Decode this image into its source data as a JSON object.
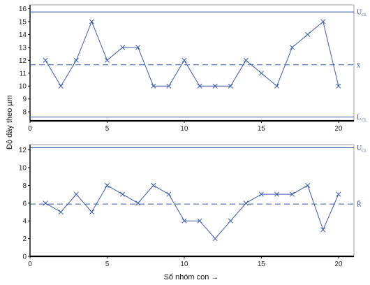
{
  "chart_data": [
    {
      "type": "line",
      "x": [
        1,
        2,
        3,
        4,
        5,
        6,
        7,
        8,
        9,
        10,
        11,
        12,
        13,
        14,
        15,
        16,
        17,
        18,
        19,
        20
      ],
      "series": [
        {
          "values": [
            12,
            10,
            12,
            15,
            12,
            13,
            13,
            10,
            10,
            12,
            10,
            10,
            10,
            12,
            11,
            10,
            13,
            14,
            15,
            10
          ]
        }
      ],
      "xlim": [
        0,
        21
      ],
      "ylim": [
        7.3,
        16.3
      ],
      "xticks": [
        0,
        5,
        10,
        15,
        20
      ],
      "yticks": [
        8,
        9,
        10,
        11,
        12,
        13,
        14,
        15,
        16
      ],
      "control_lines": [
        {
          "name_main": "U",
          "name_sub": "CL",
          "value": 15.75,
          "style": "solid"
        },
        {
          "name_main": "x̄",
          "name_sub": "",
          "value": 11.65,
          "style": "dashed"
        },
        {
          "name_main": "L",
          "name_sub": "CL",
          "value": 7.6,
          "style": "solid"
        }
      ],
      "grid": false,
      "color": "#3a5aa5"
    },
    {
      "type": "line",
      "x": [
        1,
        2,
        3,
        4,
        5,
        6,
        7,
        8,
        9,
        10,
        11,
        12,
        13,
        14,
        15,
        16,
        17,
        18,
        19,
        20
      ],
      "series": [
        {
          "values": [
            6,
            5,
            7,
            5,
            8,
            7,
            6,
            8,
            7,
            4,
            4,
            2,
            4,
            6,
            7,
            7,
            7,
            8,
            3,
            7
          ]
        }
      ],
      "xlim": [
        0,
        21
      ],
      "ylim": [
        0,
        12.6
      ],
      "xticks": [
        0,
        5,
        10,
        15,
        20
      ],
      "yticks": [
        0,
        2,
        4,
        6,
        8,
        10,
        12
      ],
      "control_lines": [
        {
          "name_main": "U",
          "name_sub": "CL",
          "value": 12.25,
          "style": "solid"
        },
        {
          "name_main": "R̄",
          "name_sub": "",
          "value": 5.9,
          "style": "dashed"
        }
      ],
      "grid": false,
      "color": "#3a5aa5"
    }
  ],
  "ylabel": "Độ dày theo µm",
  "xlabel": "Số nhóm con →"
}
